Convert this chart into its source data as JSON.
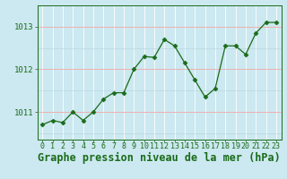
{
  "x": [
    0,
    1,
    2,
    3,
    4,
    5,
    6,
    7,
    8,
    9,
    10,
    11,
    12,
    13,
    14,
    15,
    16,
    17,
    18,
    19,
    20,
    21,
    22,
    23
  ],
  "y": [
    1010.7,
    1010.8,
    1010.75,
    1011.0,
    1010.8,
    1011.0,
    1011.3,
    1011.45,
    1011.45,
    1012.0,
    1012.3,
    1012.28,
    1012.7,
    1012.55,
    1012.15,
    1011.75,
    1011.35,
    1011.55,
    1012.55,
    1012.55,
    1012.35,
    1012.85,
    1013.1,
    1013.1
  ],
  "line_color": "#1a6b1a",
  "marker": "D",
  "marker_size": 2.5,
  "bg_color": "#cce8f0",
  "grid_white": "#ffffff",
  "grid_pink": "#f0b0b0",
  "grid_light": "#b8d8e4",
  "ylabel_ticks": [
    1011,
    1012,
    1013
  ],
  "xlabel_label": "Graphe pression niveau de la mer (hPa)",
  "tick_fontsize": 6.5,
  "xlabel_fontsize": 8.5,
  "ylim": [
    1010.35,
    1013.5
  ],
  "xlim": [
    -0.5,
    23.5
  ]
}
